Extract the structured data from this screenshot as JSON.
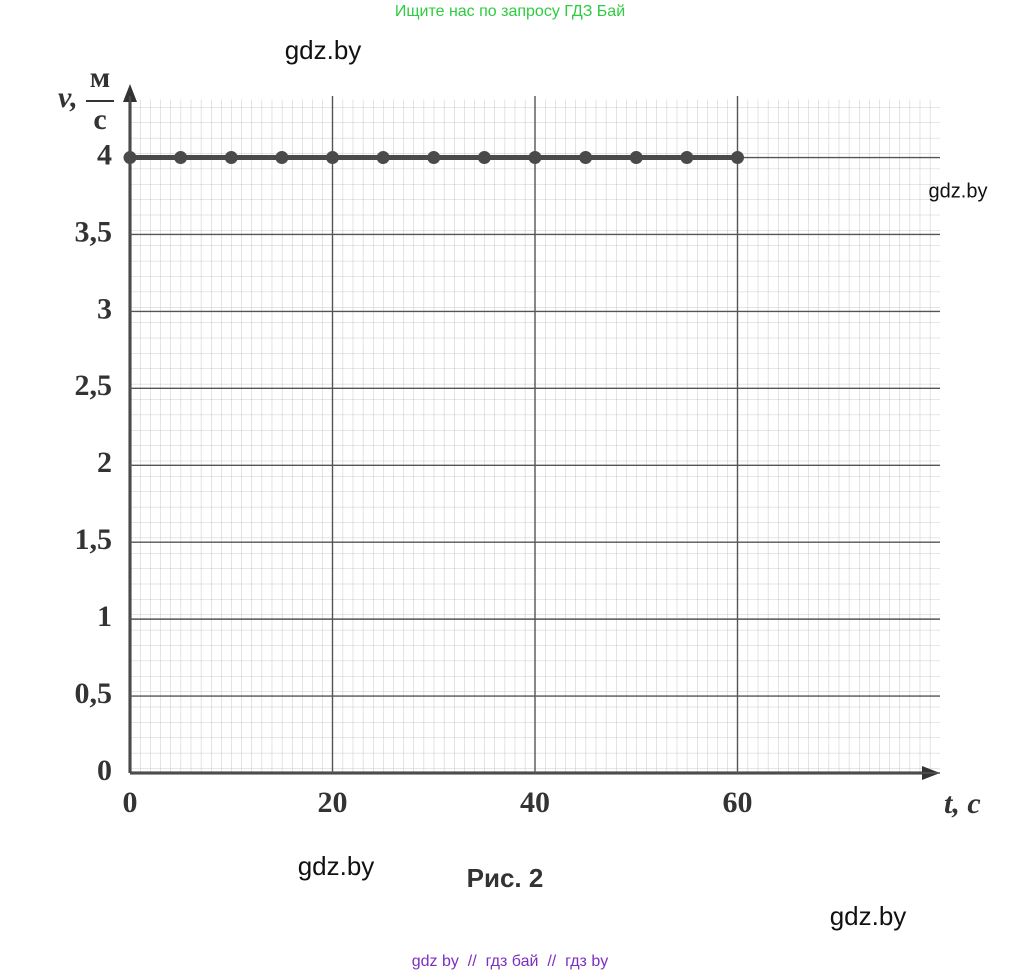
{
  "chart_data": {
    "type": "line",
    "x": [
      0,
      5,
      10,
      15,
      20,
      25,
      30,
      35,
      40,
      45,
      50,
      55,
      60
    ],
    "values": [
      4,
      4,
      4,
      4,
      4,
      4,
      4,
      4,
      4,
      4,
      4,
      4,
      4
    ],
    "color": "#4a4a4a",
    "xlim": [
      0,
      80
    ],
    "ylim": [
      0,
      4.4
    ],
    "xticks": [
      0,
      20,
      40,
      60
    ],
    "yticks": [
      0,
      {
        "value": 0.5,
        "label": "0,5"
      },
      1,
      {
        "value": 1.5,
        "label": "1,5"
      },
      2,
      {
        "value": 2.5,
        "label": "2,5"
      },
      3,
      {
        "value": 3.5,
        "label": "3,5"
      },
      4
    ],
    "y_label": "v,",
    "y_unit_top": "м",
    "y_unit_bottom": "с",
    "x_label": "t, с",
    "grid": true
  },
  "caption": "Рис. 2",
  "watermarks": {
    "top": "Ищите нас по запросу ГДЗ Бай",
    "marks": [
      "gdz.by",
      "gdz.by",
      "gdz.by",
      "gdz.by"
    ],
    "bottom": "gdz by  //  гдз бай  //  гдз by"
  }
}
